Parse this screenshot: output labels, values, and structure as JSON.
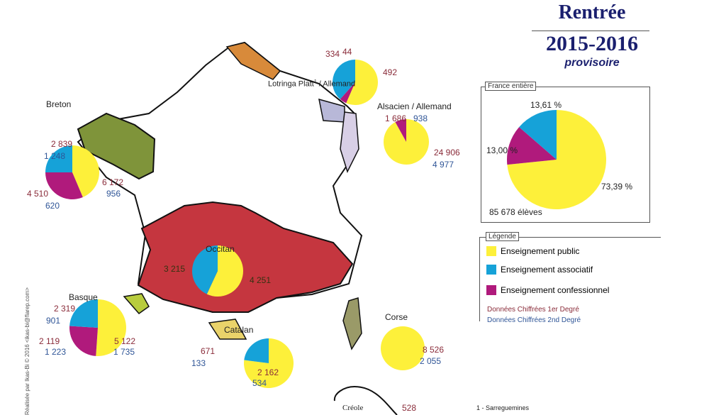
{
  "header": {
    "line1": "Rentrée",
    "line2": "2015-2016",
    "line3": "provisoire"
  },
  "colors": {
    "public": "#fdf03a",
    "associatif": "#16a2d8",
    "confessionnel": "#b01a7c",
    "first_degree": "#8a2c3a",
    "second_degree": "#2f5597"
  },
  "regions": {
    "breton": {
      "name": "Breton",
      "public": {
        "d1": "6 172",
        "d2": "956"
      },
      "associatif": {
        "d1": "2 839",
        "d2": "1 248"
      },
      "confessionnel": {
        "d1": "4 510",
        "d2": "620"
      },
      "pie": [
        7128,
        5130,
        4087
      ]
    },
    "lorraine": {
      "name": "Lotringa Platt",
      "sup": "1",
      "name2": "/ Allemand",
      "public": {
        "d1": "492"
      },
      "associatif": {
        "d1": "334"
      },
      "confessionnel": {
        "d1": "44"
      },
      "pie": [
        492,
        44,
        334
      ]
    },
    "alsace": {
      "name": "Alsacien / Allemand",
      "public": {
        "d1": "24 906",
        "d2": "4 977"
      },
      "confessionnel": {
        "d1": "1 686",
        "d2": "938"
      },
      "pie": [
        29883,
        2624,
        0
      ]
    },
    "occitan": {
      "name": "Occitan",
      "public": {
        "d1": "4 251"
      },
      "associatif": {
        "d1": "3 215"
      },
      "pie": [
        4251,
        0,
        3215
      ]
    },
    "basque": {
      "name": "Basque",
      "public": {
        "d1": "5 122",
        "d2": "1 735"
      },
      "associatif": {
        "d1": "2 319",
        "d2": "901"
      },
      "confessionnel": {
        "d1": "2 119",
        "d2": "1 223"
      },
      "pie": [
        6857,
        3342,
        3220
      ]
    },
    "catalan": {
      "name": "Catalan",
      "public": {
        "d1": "2 162",
        "d2": "534"
      },
      "associatif": {
        "d1": "671",
        "d2": "133"
      },
      "pie": [
        2696,
        0,
        804
      ]
    },
    "corse": {
      "name": "Corse",
      "public": {
        "d1": "8 526",
        "d2": "2 055"
      },
      "pie": [
        10581,
        0,
        0
      ]
    },
    "creole": {
      "name": "Créole",
      "value": "528"
    }
  },
  "france": {
    "title": "France entière",
    "public_pct": "73,39 %",
    "associatif_pct": "13,61 %",
    "confessionnel_pct": "13,00 %",
    "total": "85 678 élèves",
    "pie": [
      73.39,
      13.0,
      13.61
    ]
  },
  "legend": {
    "title": "Légende",
    "items": [
      "Enseignement public",
      "Enseignement associatif",
      "Enseignement confessionnel"
    ],
    "first_degree": "Données Chiffrées 1er Degré",
    "second_degree": "Données Chiffrées 2nd Degré"
  },
  "footnote": "1 - Sarreguemines",
  "credit": "Réalisée par Ikas-Bi © 2016 <ikas-bi@flarep.com>"
}
